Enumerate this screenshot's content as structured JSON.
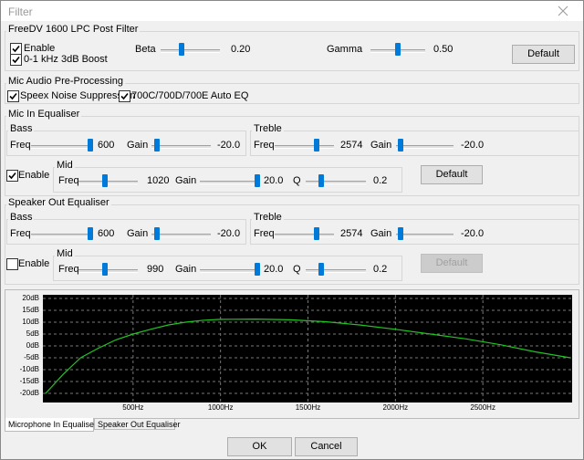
{
  "window": {
    "title": "Filter"
  },
  "post_filter": {
    "title": "FreeDV 1600 LPC Post Filter",
    "enable": "Enable",
    "boost": "0-1 kHz 3dB Boost",
    "beta_label": "Beta",
    "beta_value": "0.20",
    "gamma_label": "Gamma",
    "gamma_value": "0.50",
    "default": "Default"
  },
  "preprocessing": {
    "title": "Mic Audio Pre-Processing",
    "speex": "Speex Noise Suppression",
    "auto_eq": "700C/700D/700E Auto EQ"
  },
  "mic_eq": {
    "title": "Mic In Equaliser",
    "bass": {
      "title": "Bass",
      "freq_label": "Freq",
      "freq": "600",
      "gain_label": "Gain",
      "gain": "-20.0"
    },
    "treble": {
      "title": "Treble",
      "freq_label": "Freq",
      "freq": "2574",
      "gain_label": "Gain",
      "gain": "-20.0"
    },
    "enable": "Enable",
    "mid": {
      "title": "Mid",
      "freq_label": "Freq",
      "freq": "1020",
      "gain_label": "Gain",
      "gain": "20.0",
      "q_label": "Q",
      "q": "0.2"
    },
    "default": "Default"
  },
  "spk_eq": {
    "title": "Speaker Out Equaliser",
    "bass": {
      "title": "Bass",
      "freq_label": "Freq",
      "freq": "600",
      "gain_label": "Gain",
      "gain": "-20.0"
    },
    "treble": {
      "title": "Treble",
      "freq_label": "Freq",
      "freq": "2574",
      "gain_label": "Gain",
      "gain": "-20.0"
    },
    "enable": "Enable",
    "mid": {
      "title": "Mid",
      "freq_label": "Freq",
      "freq": "990",
      "gain_label": "Gain",
      "gain": "20.0",
      "q_label": "Q",
      "q": "0.2"
    },
    "default": "Default"
  },
  "tabs": [
    "Microphone In Equaliser",
    "Speaker Out Equaliser"
  ],
  "buttons": {
    "ok": "OK",
    "cancel": "Cancel"
  },
  "chart_data": {
    "type": "line",
    "x": [
      0,
      100,
      200,
      300,
      400,
      500,
      600,
      700,
      800,
      900,
      1000,
      1200,
      1400,
      1600,
      1800,
      2000,
      2200,
      2400,
      2600,
      2800,
      3000
    ],
    "series": [
      {
        "color": "#22c422",
        "values": [
          -20,
          -12,
          -5,
          -1,
          2.5,
          5,
          7,
          8.8,
          10,
          10.8,
          11.2,
          11.3,
          11,
          10.2,
          8.8,
          7,
          5,
          3,
          0.5,
          -2.5,
          -5
        ]
      }
    ],
    "xlim": [
      0,
      3000
    ],
    "ylim": [
      -20,
      20
    ],
    "xticks": [
      {
        "value": 500,
        "label": "500Hz"
      },
      {
        "value": 1000,
        "label": "1000Hz"
      },
      {
        "value": 1500,
        "label": "1500Hz"
      },
      {
        "value": 2000,
        "label": "2000Hz"
      },
      {
        "value": 2500,
        "label": "2500Hz"
      }
    ],
    "yticks": [
      {
        "value": 20,
        "label": "20dB"
      },
      {
        "value": 15,
        "label": "15dB"
      },
      {
        "value": 10,
        "label": "10dB"
      },
      {
        "value": 5,
        "label": "5dB"
      },
      {
        "value": 0,
        "label": "0dB"
      },
      {
        "value": -5,
        "label": "-5dB"
      },
      {
        "value": -10,
        "label": "-10dB"
      },
      {
        "value": -15,
        "label": "-15dB"
      },
      {
        "value": -20,
        "label": "-20dB"
      }
    ],
    "grid": true
  }
}
